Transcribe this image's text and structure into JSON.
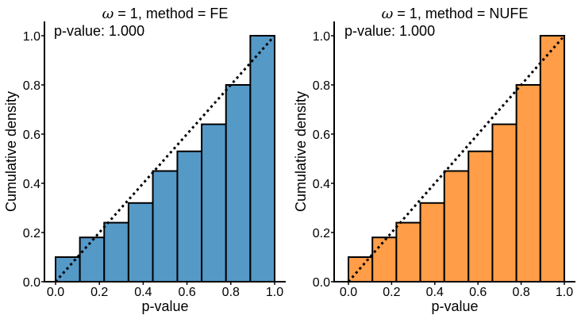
{
  "chart_data": [
    {
      "type": "bar",
      "title": {
        "symbol": "ω",
        "rest": " = 1, method = FE"
      },
      "xlabel": "p-value",
      "ylabel": "Cumulative density",
      "annotation": "p-value: 1.000",
      "xlim": [
        0.0,
        1.0
      ],
      "ylim": [
        0.0,
        1.0
      ],
      "xticks": [
        "0.0",
        "0.2",
        "0.4",
        "0.6",
        "0.8",
        "1.0"
      ],
      "yticks": [
        "0.0",
        "0.2",
        "0.4",
        "0.6",
        "0.8",
        "1.0"
      ],
      "bin_edges": [
        0.0,
        0.111,
        0.222,
        0.333,
        0.444,
        0.556,
        0.667,
        0.778,
        0.889,
        1.0
      ],
      "values": [
        0.1,
        0.18,
        0.24,
        0.32,
        0.45,
        0.53,
        0.64,
        0.8,
        1.0
      ],
      "reference_line": {
        "style": "dotted",
        "from": [
          0.0,
          0.0
        ],
        "to": [
          1.0,
          1.0
        ]
      },
      "color": "#5599c7",
      "grid": false
    },
    {
      "type": "bar",
      "title": {
        "symbol": "ω",
        "rest": " = 1, method = NUFE"
      },
      "xlabel": "p-value",
      "ylabel": "Cumulative density",
      "annotation": "p-value: 1.000",
      "xlim": [
        0.0,
        1.0
      ],
      "ylim": [
        0.0,
        1.0
      ],
      "xticks": [
        "0.0",
        "0.2",
        "0.4",
        "0.6",
        "0.8",
        "1.0"
      ],
      "yticks": [
        "0.0",
        "0.2",
        "0.4",
        "0.6",
        "0.8",
        "1.0"
      ],
      "bin_edges": [
        0.0,
        0.111,
        0.222,
        0.333,
        0.444,
        0.556,
        0.667,
        0.778,
        0.889,
        1.0
      ],
      "values": [
        0.1,
        0.18,
        0.24,
        0.32,
        0.45,
        0.53,
        0.64,
        0.8,
        1.0
      ],
      "reference_line": {
        "style": "dotted",
        "from": [
          0.0,
          0.0
        ],
        "to": [
          1.0,
          1.0
        ]
      },
      "color": "#ff9d48",
      "grid": false
    }
  ]
}
